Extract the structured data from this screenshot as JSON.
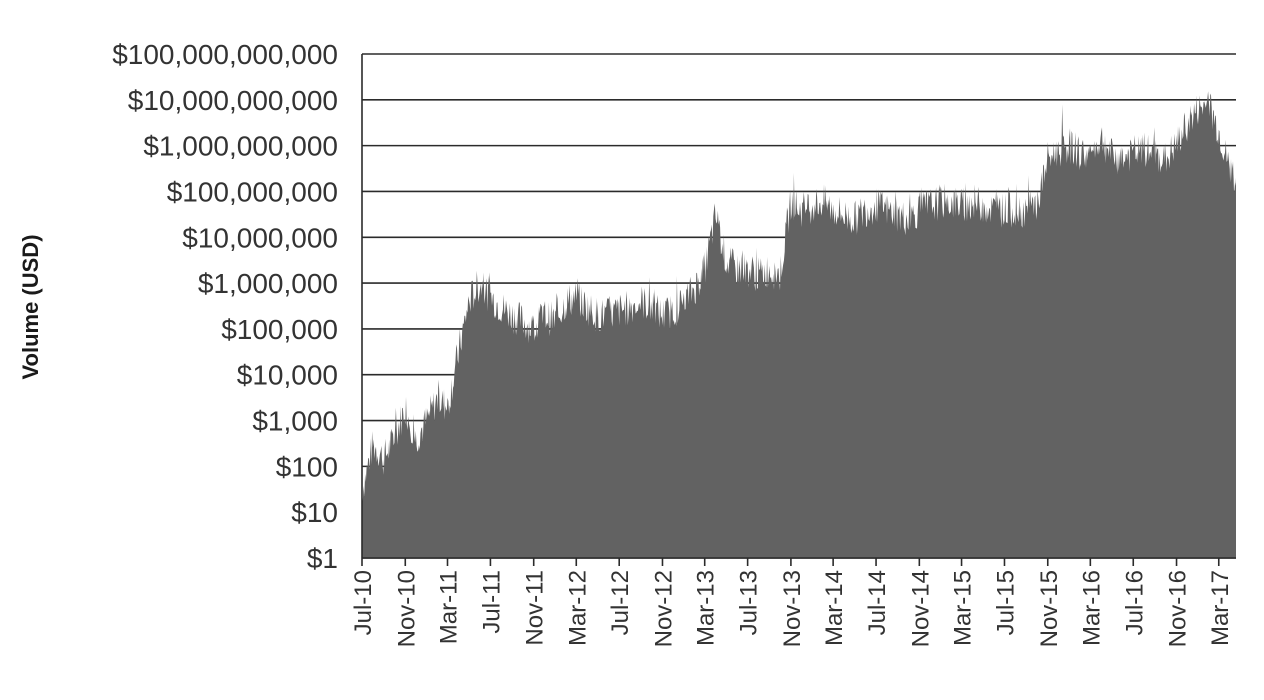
{
  "chart_data": {
    "type": "area",
    "title": "",
    "xlabel": "",
    "ylabel": "Volume (USD)",
    "yscale": "log10",
    "ylim": [
      1,
      100000000000
    ],
    "xlim": [
      "2010-07-17",
      "2017-05-05"
    ],
    "grid": "horizontal",
    "legend": "none",
    "color": "#626262",
    "y_ticks": [
      {
        "value": 1,
        "label": "$1"
      },
      {
        "value": 10,
        "label": "$10"
      },
      {
        "value": 100,
        "label": "$100"
      },
      {
        "value": 1000,
        "label": "$1,000"
      },
      {
        "value": 10000,
        "label": "$10,000"
      },
      {
        "value": 100000,
        "label": "$100,000"
      },
      {
        "value": 1000000,
        "label": "$1,000,000"
      },
      {
        "value": 10000000,
        "label": "$10,000,000"
      },
      {
        "value": 100000000,
        "label": "$100,000,000"
      },
      {
        "value": 1000000000,
        "label": "$1,000,000,000"
      },
      {
        "value": 10000000000,
        "label": "$10,000,000,000"
      },
      {
        "value": 100000000000,
        "label": "$100,000,000,000"
      }
    ],
    "x_ticks": [
      {
        "value": "2010-07-17",
        "label": "Jul-10"
      },
      {
        "value": "2010-11-17",
        "label": "Nov-10"
      },
      {
        "value": "2011-03-17",
        "label": "Mar-11"
      },
      {
        "value": "2011-07-17",
        "label": "Jul-11"
      },
      {
        "value": "2011-11-17",
        "label": "Nov-11"
      },
      {
        "value": "2012-03-17",
        "label": "Mar-12"
      },
      {
        "value": "2012-07-17",
        "label": "Jul-12"
      },
      {
        "value": "2012-11-17",
        "label": "Nov-12"
      },
      {
        "value": "2013-03-17",
        "label": "Mar-13"
      },
      {
        "value": "2013-07-17",
        "label": "Jul-13"
      },
      {
        "value": "2013-11-17",
        "label": "Nov-13"
      },
      {
        "value": "2014-03-17",
        "label": "Mar-14"
      },
      {
        "value": "2014-07-17",
        "label": "Jul-14"
      },
      {
        "value": "2014-11-17",
        "label": "Nov-14"
      },
      {
        "value": "2015-03-17",
        "label": "Mar-15"
      },
      {
        "value": "2015-07-17",
        "label": "Jul-15"
      },
      {
        "value": "2015-11-17",
        "label": "Nov-15"
      },
      {
        "value": "2016-03-17",
        "label": "Mar-16"
      },
      {
        "value": "2016-07-17",
        "label": "Jul-16"
      },
      {
        "value": "2016-11-17",
        "label": "Nov-16"
      },
      {
        "value": "2017-03-17",
        "label": "Mar-17"
      }
    ],
    "series": [
      {
        "x": [
          "2010-07-17",
          "2010-08-17",
          "2010-09-17",
          "2010-10-17",
          "2010-11-17",
          "2010-12-17",
          "2011-01-17",
          "2011-02-17",
          "2011-03-17",
          "2011-04-17",
          "2011-05-17",
          "2011-06-17",
          "2011-07-17",
          "2011-08-17",
          "2011-09-17",
          "2011-10-17",
          "2011-11-17",
          "2011-12-17",
          "2012-01-17",
          "2012-02-17",
          "2012-03-17",
          "2012-04-17",
          "2012-05-17",
          "2012-06-17",
          "2012-07-17",
          "2012-08-17",
          "2012-09-17",
          "2012-10-17",
          "2012-11-17",
          "2012-12-17",
          "2013-01-17",
          "2013-02-17",
          "2013-03-17",
          "2013-04-17",
          "2013-05-17",
          "2013-06-17",
          "2013-07-17",
          "2013-08-17",
          "2013-09-17",
          "2013-10-17",
          "2013-11-17",
          "2013-12-17",
          "2014-01-17",
          "2014-02-17",
          "2014-03-17",
          "2014-04-17",
          "2014-05-17",
          "2014-06-17",
          "2014-07-17",
          "2014-08-17",
          "2014-09-17",
          "2014-10-17",
          "2014-11-17",
          "2014-12-17",
          "2015-01-17",
          "2015-02-17",
          "2015-03-17",
          "2015-04-17",
          "2015-05-17",
          "2015-06-17",
          "2015-07-17",
          "2015-08-17",
          "2015-09-17",
          "2015-10-17",
          "2015-11-17",
          "2015-12-17",
          "2016-01-17",
          "2016-02-17",
          "2016-03-17",
          "2016-04-17",
          "2016-05-17",
          "2016-06-17",
          "2016-07-17",
          "2016-08-17",
          "2016-09-17",
          "2016-10-17",
          "2016-11-17",
          "2016-12-17",
          "2017-01-17",
          "2017-02-17",
          "2017-03-17",
          "2017-04-17",
          "2017-05-05"
        ],
        "values": [
          30,
          300,
          150,
          400,
          2000,
          400,
          1000,
          3000,
          2000,
          30000,
          400000,
          1000000,
          500000,
          300000,
          200000,
          150000,
          100000,
          200000,
          150000,
          400000,
          500000,
          300000,
          200000,
          200000,
          250000,
          300000,
          400000,
          300000,
          200000,
          250000,
          400000,
          800000,
          2000000,
          30000000,
          3000000,
          2000000,
          2000000,
          1500000,
          2000000,
          1500000,
          60000000,
          40000000,
          50000000,
          60000000,
          40000000,
          30000000,
          25000000,
          40000000,
          50000000,
          40000000,
          30000000,
          25000000,
          40000000,
          50000000,
          60000000,
          60000000,
          50000000,
          60000000,
          50000000,
          40000000,
          40000000,
          40000000,
          40000000,
          50000000,
          500000000,
          800000000,
          1000000000,
          700000000,
          600000000,
          1500000000,
          600000000,
          500000000,
          700000000,
          800000000,
          600000000,
          500000000,
          1000000000,
          3000000000,
          6000000000,
          8000000000,
          2000000000,
          300000000,
          200000000
        ]
      }
    ]
  }
}
